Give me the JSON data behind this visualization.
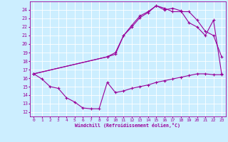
{
  "bg_color": "#cceeff",
  "line_color": "#990099",
  "xlim": [
    -0.5,
    23.5
  ],
  "ylim": [
    11.5,
    25.0
  ],
  "yticks": [
    12,
    13,
    14,
    15,
    16,
    17,
    18,
    19,
    20,
    21,
    22,
    23,
    24
  ],
  "xticks": [
    0,
    1,
    2,
    3,
    4,
    5,
    6,
    7,
    8,
    9,
    10,
    11,
    12,
    13,
    14,
    15,
    16,
    17,
    18,
    19,
    20,
    21,
    22,
    23
  ],
  "xlabel": "Windchill (Refroidissement éolien,°C)",
  "curve_bottom_x": [
    0,
    1,
    2,
    3,
    4,
    5,
    6,
    7,
    8,
    9,
    10,
    11,
    12,
    13,
    14,
    15,
    16,
    17,
    18,
    19,
    20,
    21,
    22,
    23
  ],
  "curve_bottom_y": [
    16.5,
    15.9,
    15.0,
    14.8,
    13.7,
    13.2,
    12.5,
    12.4,
    12.4,
    15.5,
    14.3,
    14.5,
    14.8,
    15.0,
    15.2,
    15.5,
    15.7,
    15.9,
    16.1,
    16.3,
    16.5,
    16.5,
    16.4,
    16.4
  ],
  "curve_mid_x": [
    0,
    9,
    10,
    11,
    12,
    13,
    14,
    15,
    16,
    17,
    18,
    19,
    20,
    21,
    22,
    23
  ],
  "curve_mid_y": [
    16.5,
    18.5,
    19.0,
    21.0,
    22.2,
    23.3,
    23.8,
    24.5,
    24.0,
    24.2,
    23.9,
    22.5,
    22.0,
    21.0,
    22.8,
    16.5
  ],
  "curve_top_x": [
    0,
    9,
    10,
    11,
    12,
    13,
    14,
    15,
    16,
    17,
    18,
    19,
    20,
    21,
    22,
    23
  ],
  "curve_top_y": [
    16.5,
    18.5,
    18.8,
    21.0,
    22.0,
    23.1,
    23.7,
    24.5,
    24.2,
    23.8,
    23.8,
    23.8,
    22.8,
    21.5,
    21.0,
    18.5
  ]
}
